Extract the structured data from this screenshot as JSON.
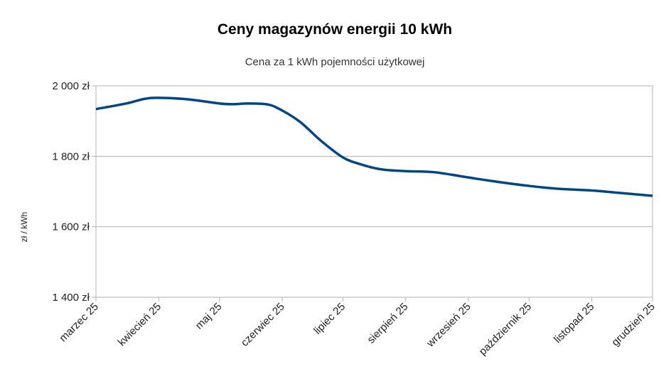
{
  "chart_data": {
    "type": "line",
    "title": "Ceny magazynów energii 10 kWh",
    "subtitle": "Cena za 1 kWh pojemności użytkowej",
    "xlabel": "",
    "ylabel": "zł / kWh",
    "ylim": [
      1400,
      2000
    ],
    "yticks": [
      "1 400 zł",
      "1 600 zł",
      "1 800 zł",
      "2 000 zł"
    ],
    "ytick_values": [
      1400,
      1600,
      1800,
      2000
    ],
    "xlim": [
      "2025-03-01",
      "2025-12-01"
    ],
    "xticks": [
      "marzec 25",
      "kwiecień 25",
      "maj 25",
      "czerwiec 25",
      "lipiec 25",
      "sierpień 25",
      "wrzesień 25",
      "październik 25",
      "listopad 25",
      "grudzień 25"
    ],
    "xtick_dates": [
      "2025-03-01",
      "2025-04-01",
      "2025-05-01",
      "2025-06-01",
      "2025-07-01",
      "2025-08-01",
      "2025-09-01",
      "2025-10-01",
      "2025-11-01",
      "2025-12-01"
    ],
    "grid": true,
    "legend": "none",
    "colors": {
      "line": "#004586",
      "grid": "#b3b3b3"
    },
    "series": [
      {
        "x": [
          "2025-03-01",
          "2025-03-16",
          "2025-03-25",
          "2025-04-01",
          "2025-04-15",
          "2025-05-01",
          "2025-05-08",
          "2025-05-15",
          "2025-05-25",
          "2025-06-01",
          "2025-06-10",
          "2025-06-20",
          "2025-07-01",
          "2025-07-10",
          "2025-07-20",
          "2025-08-01",
          "2025-08-15",
          "2025-09-01",
          "2025-09-15",
          "2025-10-01",
          "2025-10-15",
          "2025-11-01",
          "2025-11-15",
          "2025-12-01"
        ],
        "y": [
          1934,
          1950,
          1963,
          1966,
          1962,
          1950,
          1948,
          1950,
          1947,
          1930,
          1897,
          1845,
          1797,
          1777,
          1763,
          1758,
          1755,
          1740,
          1728,
          1716,
          1708,
          1703,
          1696,
          1688
        ]
      }
    ]
  }
}
